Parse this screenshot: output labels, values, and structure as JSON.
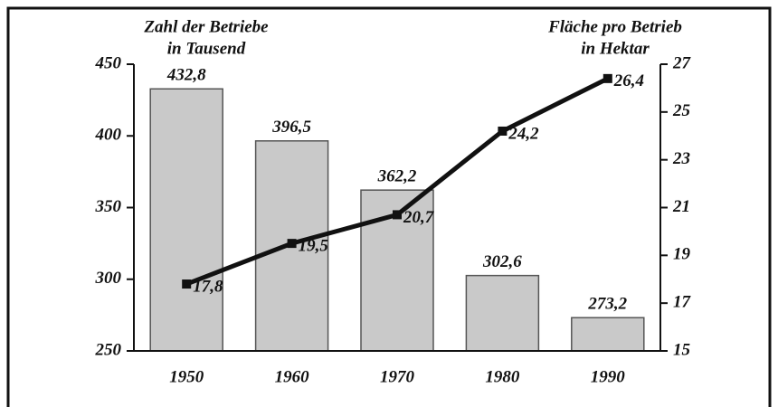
{
  "chart_data": {
    "type": "bar",
    "ylabel": [
      "Zahl der Betriebe",
      "in Tausend"
    ],
    "y2label": [
      "Fläche pro Betrieb",
      "in Hektar"
    ],
    "categories": [
      "1950",
      "1960",
      "1970",
      "1980",
      "1990"
    ],
    "series": [
      {
        "type": "bar",
        "color": "#c9c9c9",
        "values": [
          432.8,
          396.5,
          362.2,
          302.6,
          273.2
        ],
        "value_labels": [
          "432,8",
          "396,5",
          "362,2",
          "302,6",
          "273,2"
        ]
      },
      {
        "type": "line",
        "axis": "y2",
        "color": "#111111",
        "values": [
          17.8,
          19.5,
          20.7,
          24.2,
          26.4
        ],
        "value_labels": [
          "17,8",
          "19,5",
          "20,7",
          "24,2",
          "26,4"
        ]
      }
    ],
    "ylim": [
      250,
      450
    ],
    "yticks": [
      250,
      300,
      350,
      400,
      450
    ],
    "y2lim": [
      15,
      27
    ],
    "y2ticks": [
      15,
      17,
      19,
      21,
      23,
      25,
      27
    ]
  }
}
